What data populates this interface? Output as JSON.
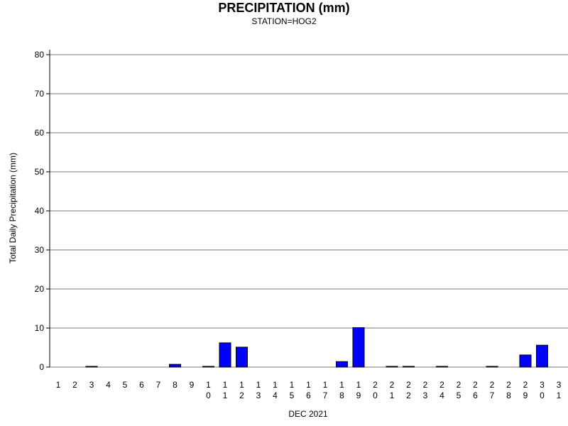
{
  "chart_data": {
    "type": "bar",
    "title": "PRECIPITATION (mm)",
    "subtitle": "STATION=HOG2",
    "xlabel": "DEC 2021",
    "ylabel": "Total Daily Precipitation (mm)",
    "ylim": [
      0,
      80
    ],
    "yticks": [
      0,
      10,
      20,
      30,
      40,
      50,
      60,
      70,
      80
    ],
    "grid": true,
    "bar_color": "#0000ff",
    "categories": [
      "1",
      "2",
      "3",
      "4",
      "5",
      "6",
      "7",
      "8",
      "9",
      "10",
      "11",
      "12",
      "13",
      "14",
      "15",
      "16",
      "17",
      "18",
      "19",
      "20",
      "21",
      "22",
      "23",
      "24",
      "25",
      "26",
      "27",
      "28",
      "29",
      "30",
      "31"
    ],
    "values": [
      0,
      0,
      0.1,
      0,
      0,
      0,
      0,
      0.7,
      0,
      0.1,
      6.2,
      5.1,
      0,
      0,
      0,
      0,
      0,
      1.4,
      10.1,
      0,
      0.1,
      0.1,
      0,
      0.1,
      0,
      0,
      0.1,
      0,
      3.1,
      5.6,
      0
    ]
  }
}
